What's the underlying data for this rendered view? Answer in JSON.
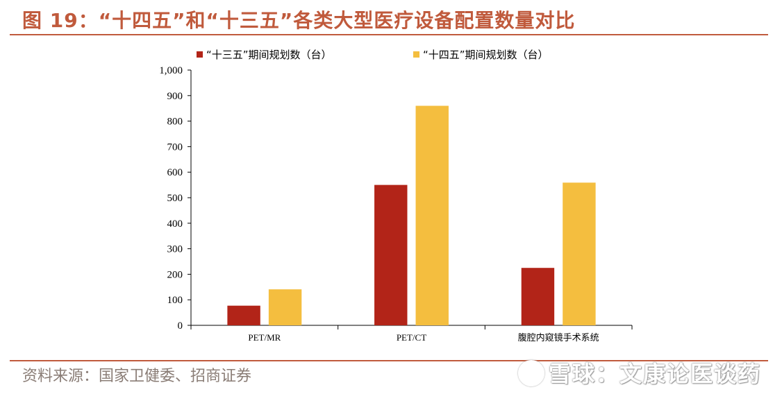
{
  "title": "图 19：“十四五”和“十三五”各类大型医疗设备配置数量对比",
  "source": "资料来源：国家卫健委、招商证券",
  "watermark": "雪球：文康论医谈药",
  "colors": {
    "accent": "#c05a3c",
    "series1": "#b22418",
    "series2": "#f4be3f"
  },
  "chart_data": {
    "type": "bar",
    "categories": [
      "PET/MR",
      "PET/CT",
      "腹腔内窥镜手术系统"
    ],
    "series": [
      {
        "name": "“十三五”期间规划数（台）",
        "values": [
          77,
          550,
          225
        ]
      },
      {
        "name": "“十四五”期间规划数（台）",
        "values": [
          141,
          860,
          559
        ]
      }
    ],
    "ylim": [
      0,
      1000
    ],
    "yticks": [
      "0",
      "100",
      "200",
      "300",
      "400",
      "500",
      "600",
      "700",
      "800",
      "900",
      "1,000"
    ],
    "legend_position": "top",
    "grid": false
  }
}
